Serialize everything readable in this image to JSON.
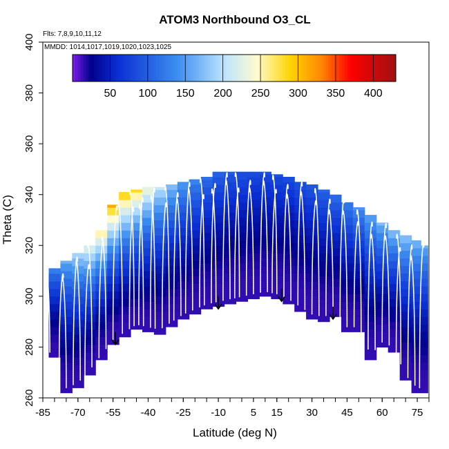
{
  "chart_data": {
    "type": "heatmap",
    "title": "ATOM3 Northbound O3_CL",
    "flights_note": "Flts: 7,8,9,10,11,12",
    "dates_note": "MMDD: 1014,1017,1019,1020,1023,1025",
    "xlabel": "Latitude (deg N)",
    "ylabel": "Theta (C)",
    "xlim": [
      -85,
      80
    ],
    "ylim": [
      260,
      400
    ],
    "x_ticks": [
      -85,
      -70,
      -55,
      -40,
      -25,
      -10,
      5,
      15,
      30,
      45,
      60,
      75
    ],
    "y_ticks": [
      260,
      280,
      300,
      320,
      340,
      360,
      380,
      400
    ],
    "colorbar": {
      "range": [
        0,
        430
      ],
      "ticks": [
        50,
        100,
        150,
        200,
        250,
        300,
        350,
        400
      ],
      "colors": [
        "#7b1fe8",
        "#00008b",
        "#0a2fd4",
        "#3d8ef0",
        "#b8e2ff",
        "#fffbd0",
        "#ffd400",
        "#ff8a00",
        "#ff0000",
        "#a01010"
      ],
      "color_stops": [
        0,
        25,
        60,
        140,
        200,
        245,
        290,
        330,
        370,
        430
      ]
    },
    "field": {
      "latitude": [
        -80,
        -75,
        -70,
        -65,
        -60,
        -55,
        -50,
        -45,
        -40,
        -35,
        -30,
        -25,
        -20,
        -15,
        -10,
        -5,
        0,
        5,
        10,
        15,
        20,
        25,
        30,
        35,
        40,
        45,
        50,
        55,
        60,
        65,
        70,
        75,
        78
      ],
      "theta_top": [
        311,
        314,
        317,
        320,
        326,
        336,
        341,
        342,
        343,
        343,
        344,
        345,
        346,
        347,
        349,
        349,
        349,
        349,
        349,
        348,
        347,
        345,
        344,
        342,
        340,
        337,
        335,
        332,
        329,
        326,
        324,
        322,
        320
      ],
      "theta_bottom": [
        276,
        262,
        264,
        269,
        275,
        281,
        284,
        287,
        286,
        285,
        288,
        291,
        293,
        295,
        296,
        297,
        298,
        299,
        300,
        299,
        297,
        294,
        291,
        290,
        292,
        286,
        286,
        275,
        280,
        278,
        267,
        262,
        262
      ],
      "o3_top": [
        140,
        170,
        205,
        245,
        285,
        325,
        315,
        295,
        255,
        215,
        185,
        160,
        140,
        120,
        110,
        100,
        95,
        90,
        90,
        90,
        90,
        95,
        100,
        110,
        120,
        135,
        150,
        165,
        180,
        190,
        190,
        180,
        170
      ]
    },
    "flight_profile_latitudes": [
      -82,
      -78,
      -75,
      -72,
      -69,
      -67,
      -64,
      -61,
      -58,
      -55,
      -51,
      -48,
      -46,
      -44,
      -42,
      -39,
      -37,
      -34,
      -31,
      -29,
      -26,
      -24,
      -21,
      -18,
      -16,
      -13,
      -11,
      -8,
      -5,
      -3,
      -1,
      2,
      5,
      8,
      11,
      13,
      15,
      18,
      21,
      24,
      27,
      30,
      33,
      36,
      39,
      42,
      45,
      48,
      51,
      54,
      57,
      60,
      63,
      66,
      68,
      71,
      74,
      76
    ],
    "arrows": [
      {
        "lat": -54,
        "theta": 281
      },
      {
        "lat": -10,
        "theta": 295
      },
      {
        "lat": 17,
        "theta": 298
      },
      {
        "lat": 39,
        "theta": 291
      }
    ]
  }
}
